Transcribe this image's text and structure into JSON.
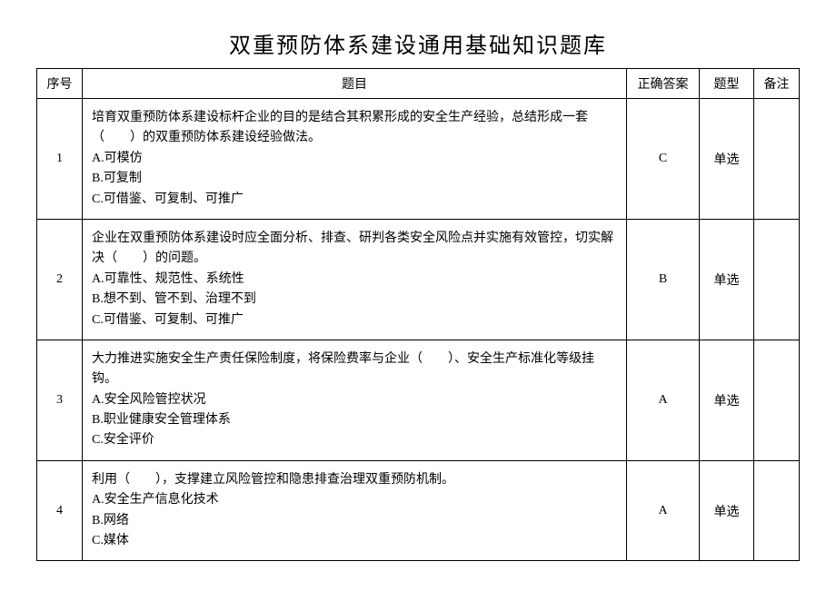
{
  "title": "双重预防体系建设通用基础知识题库",
  "columns": [
    "序号",
    "题目",
    "正确答案",
    "题型",
    "备注"
  ],
  "col_widths": [
    "50px",
    "auto",
    "80px",
    "60px",
    "50px"
  ],
  "rows": [
    {
      "seq": "1",
      "stem": "培育双重预防体系建设标杆企业的目的是结合其积累形成的安全生产经验，总结形成一套（　　）的双重预防体系建设经验做法。",
      "options": [
        "A.可模仿",
        "B.可复制",
        "C.可借鉴、可复制、可推广"
      ],
      "answer": "C",
      "type": "单选",
      "remark": ""
    },
    {
      "seq": "2",
      "stem": "企业在双重预防体系建设时应全面分析、排查、研判各类安全风险点并实施有效管控，切实解决（　　）的问题。",
      "options": [
        "A.可靠性、规范性、系统性",
        "B.想不到、管不到、治理不到",
        "C.可借鉴、可复制、可推广"
      ],
      "answer": "B",
      "type": "单选",
      "remark": ""
    },
    {
      "seq": "3",
      "stem": "大力推进实施安全生产责任保险制度，将保险费率与企业（　　）、安全生产标准化等级挂钩。",
      "options": [
        "A.安全风险管控状况",
        "B.职业健康安全管理体系",
        "C.安全评价"
      ],
      "answer": "A",
      "type": "单选",
      "remark": ""
    },
    {
      "seq": "4",
      "stem": "利用（　　），支撑建立风险管控和隐患排查治理双重预防机制。",
      "options": [
        "A.安全生产信息化技术",
        "B.网络",
        "C.媒体"
      ],
      "answer": "A",
      "type": "单选",
      "remark": ""
    }
  ],
  "colors": {
    "background": "#ffffff",
    "text": "#000000",
    "border": "#000000"
  },
  "typography": {
    "title_fontsize": 24,
    "body_fontsize": 14,
    "font_family": "SimSun"
  }
}
